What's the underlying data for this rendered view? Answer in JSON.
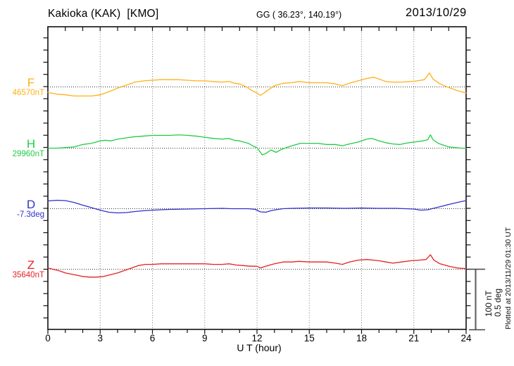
{
  "header": {
    "station_title": "Kakioka (KAK)  [KMO]",
    "coordinates": "GG ( 36.23°, 140.19°)",
    "date": "2013/10/29"
  },
  "xaxis": {
    "label": "U T (hour)"
  },
  "scalebar": {
    "line1": "100 nT",
    "line2": "0.5 deg"
  },
  "footer": {
    "plotted_at": "Plotted at 2013/11/29 01:30 UT"
  },
  "chart_data": {
    "type": "line",
    "title": "Kakioka (KAK) [KMO] magnetogram",
    "date": "2013/10/29",
    "xlabel": "U T (hour)",
    "x_range": [
      0,
      24
    ],
    "x_ticks": [
      0,
      3,
      6,
      9,
      12,
      15,
      18,
      21,
      24
    ],
    "x_minor_tick_every_hours": 1,
    "grid_hours": [
      3,
      6,
      9,
      12,
      15,
      18,
      21
    ],
    "grid": true,
    "scale": {
      "nT_per_division": 100,
      "deg_per_division": 0.5
    },
    "series": [
      {
        "name": "F",
        "unit": "nT",
        "baseline_value": 46570,
        "baseline_label": "46570nT",
        "color": "#FFB017",
        "hours": [
          0,
          0.5,
          1,
          1.5,
          2,
          2.5,
          3,
          3.5,
          4,
          4.5,
          5,
          5.5,
          6,
          6.5,
          7,
          7.5,
          8,
          8.5,
          9,
          9.5,
          10,
          10.4,
          10.7,
          11,
          11.4,
          11.7,
          12,
          12.2,
          12.5,
          12.8,
          13,
          13.5,
          14,
          14.4,
          15,
          15.5,
          16,
          16.5,
          16.9,
          17.3,
          17.8,
          18.3,
          18.7,
          19,
          19.4,
          19.8,
          20.3,
          20.8,
          21.2,
          21.6,
          21.9,
          22.1,
          22.5,
          23,
          23.5,
          24
        ],
        "offsets_from_baseline": [
          -9,
          -12,
          -13,
          -15,
          -15,
          -15,
          -13,
          -8,
          -2,
          3,
          8,
          10,
          11,
          12,
          12,
          12,
          11,
          10,
          10,
          9,
          8,
          9,
          6,
          5,
          0,
          -6,
          -10,
          -14,
          -8,
          -2,
          2,
          6,
          7,
          9,
          7,
          7,
          7,
          5,
          2,
          6,
          10,
          14,
          16,
          13,
          9,
          8,
          8,
          9,
          10,
          12,
          23,
          13,
          5,
          -1,
          -6,
          -10
        ]
      },
      {
        "name": "H",
        "unit": "nT",
        "baseline_value": 29960,
        "baseline_label": "29960nT",
        "color": "#22CC44",
        "hours": [
          0,
          0.5,
          1,
          1.5,
          2,
          2.5,
          3,
          3.3,
          3.6,
          4,
          4.5,
          5,
          5.5,
          6,
          6.5,
          7,
          7.5,
          8,
          8.5,
          9,
          9.5,
          10,
          10.4,
          10.7,
          11,
          11.5,
          11.8,
          12,
          12.3,
          12.5,
          12.8,
          13.1,
          13.4,
          13.7,
          14,
          14.5,
          15,
          15.5,
          16,
          16.5,
          16.9,
          17.3,
          17.8,
          18.3,
          18.6,
          19,
          19.4,
          19.8,
          20.2,
          20.7,
          21,
          21.5,
          21.8,
          21.95,
          22.1,
          22.4,
          22.7,
          23,
          23.4,
          23.7,
          24
        ],
        "offsets_from_baseline": [
          0,
          0,
          1,
          2,
          6,
          8,
          12,
          13,
          12,
          15,
          17,
          19,
          20,
          21,
          21,
          21,
          22,
          21,
          20,
          18,
          16,
          15,
          16,
          13,
          12,
          8,
          3,
          1,
          -11,
          -9,
          -3,
          -7,
          -2,
          1,
          4,
          8,
          8,
          8,
          6,
          6,
          4,
          7,
          10,
          15,
          16,
          12,
          9,
          7,
          6,
          9,
          10,
          12,
          14,
          22,
          14,
          8,
          5,
          2,
          1,
          0,
          0
        ]
      },
      {
        "name": "D",
        "unit": "deg",
        "baseline_value": -7.3,
        "baseline_label": "-7.3deg",
        "color": "#3030CC",
        "hours": [
          0,
          0.5,
          1,
          1.5,
          2,
          2.5,
          3,
          3.5,
          4,
          4.5,
          5,
          5.5,
          6,
          6.5,
          7,
          8,
          9,
          10,
          10.5,
          11,
          11.5,
          11.9,
          12.2,
          12.5,
          12.8,
          13.2,
          13.5,
          14,
          15,
          16,
          17,
          18,
          19,
          20,
          20.5,
          21,
          21.4,
          21.8,
          22.2,
          22.6,
          23,
          23.5,
          24
        ],
        "offsets_from_baseline": [
          0.064,
          0.07,
          0.067,
          0.052,
          0.029,
          0.009,
          -0.012,
          -0.029,
          -0.035,
          -0.032,
          -0.023,
          -0.017,
          -0.012,
          -0.009,
          -0.006,
          -0.003,
          0,
          0.003,
          0,
          0,
          0,
          -0.006,
          -0.026,
          -0.029,
          -0.017,
          -0.006,
          0,
          0.003,
          0.006,
          0.006,
          0.003,
          0.006,
          0.003,
          0.003,
          0,
          -0.003,
          -0.012,
          -0.009,
          0.006,
          0.02,
          0.035,
          0.052,
          0.067
        ]
      },
      {
        "name": "Z",
        "unit": "nT",
        "baseline_value": 35640,
        "baseline_label": "35640nT",
        "color": "#E62020",
        "hours": [
          0,
          0.3,
          0.7,
          1,
          1.5,
          2,
          2.4,
          2.8,
          3.2,
          3.6,
          4,
          4.4,
          4.8,
          5.2,
          5.6,
          6,
          6.5,
          7,
          7.5,
          8,
          8.5,
          9,
          9.5,
          10,
          10.4,
          10.8,
          11.2,
          11.6,
          12,
          12.2,
          12.5,
          13,
          13.5,
          14,
          14.4,
          15,
          15.5,
          16,
          16.5,
          16.9,
          17.3,
          17.8,
          18.3,
          18.7,
          19,
          19.4,
          19.8,
          20.3,
          20.8,
          21.3,
          21.7,
          21.95,
          22.15,
          22.5,
          23,
          23.5,
          24
        ],
        "offsets_from_baseline": [
          2,
          0,
          -3,
          -6,
          -9,
          -12,
          -13,
          -13,
          -12,
          -9,
          -6,
          -2,
          2,
          6,
          8,
          8,
          9,
          9,
          9,
          9,
          9,
          9,
          8,
          8,
          9,
          7,
          6,
          5,
          5,
          2,
          5,
          9,
          12,
          12,
          13,
          12,
          12,
          12,
          10,
          8,
          12,
          15,
          16,
          15,
          14,
          12,
          10,
          12,
          14,
          15,
          16,
          24,
          15,
          9,
          5,
          2,
          1
        ]
      }
    ]
  }
}
